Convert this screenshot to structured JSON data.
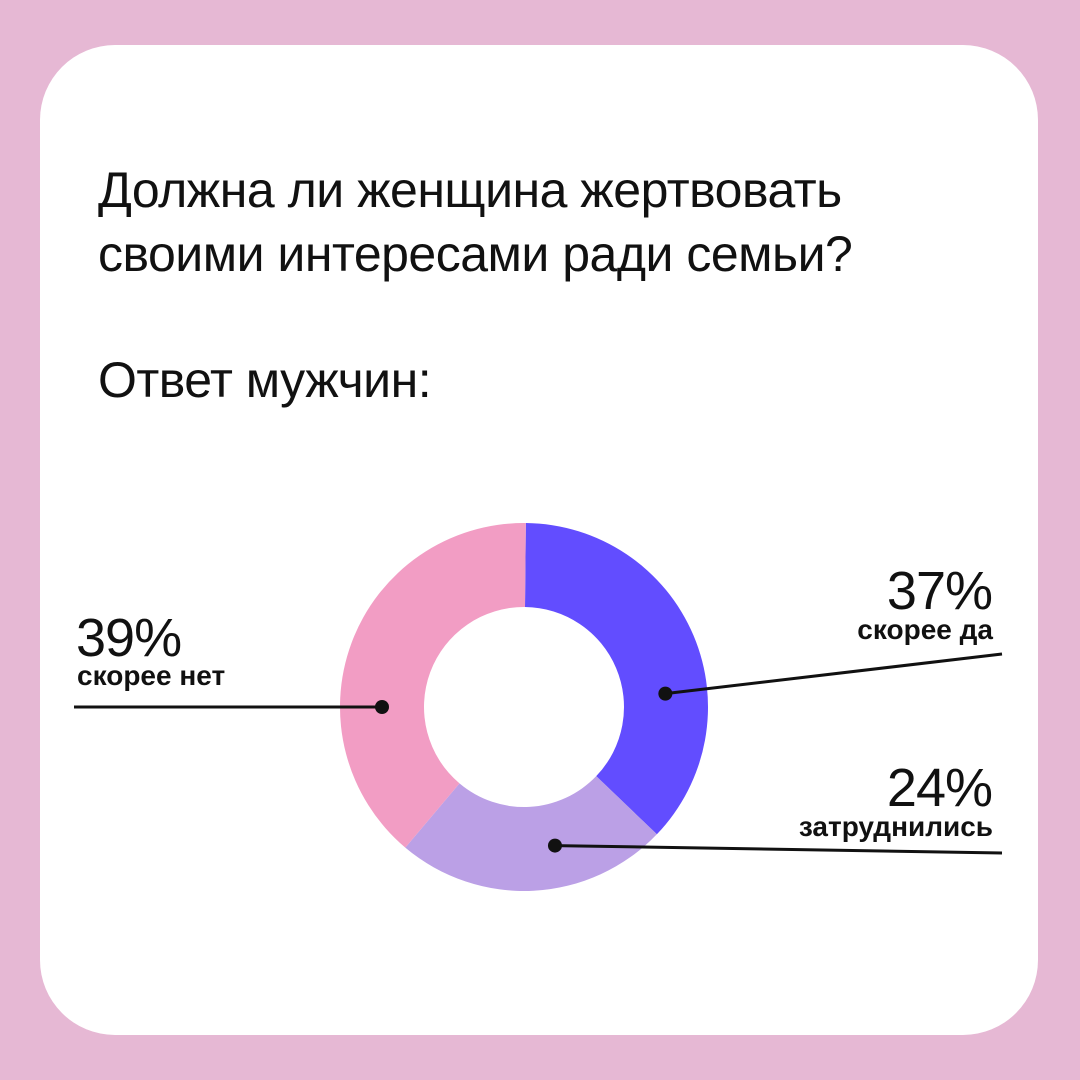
{
  "title": "Должна ли женщина жертвовать своими интересами ради семьи?",
  "subtitle": "Ответ мужчин:",
  "colors": {
    "background": "#E6B8D4",
    "card": "#FFFFFF",
    "text": "#111111"
  },
  "chart_data": {
    "type": "donut",
    "unit": "%",
    "slices": [
      {
        "category": "скорее да",
        "value": 37,
        "label": "37%",
        "color": "#624DFF"
      },
      {
        "category": "затруднились",
        "value": 24,
        "label": "24%",
        "color": "#BBA0E6"
      },
      {
        "category": "скорее нет",
        "value": 39,
        "label": "39%",
        "color": "#F29DC4"
      }
    ]
  }
}
